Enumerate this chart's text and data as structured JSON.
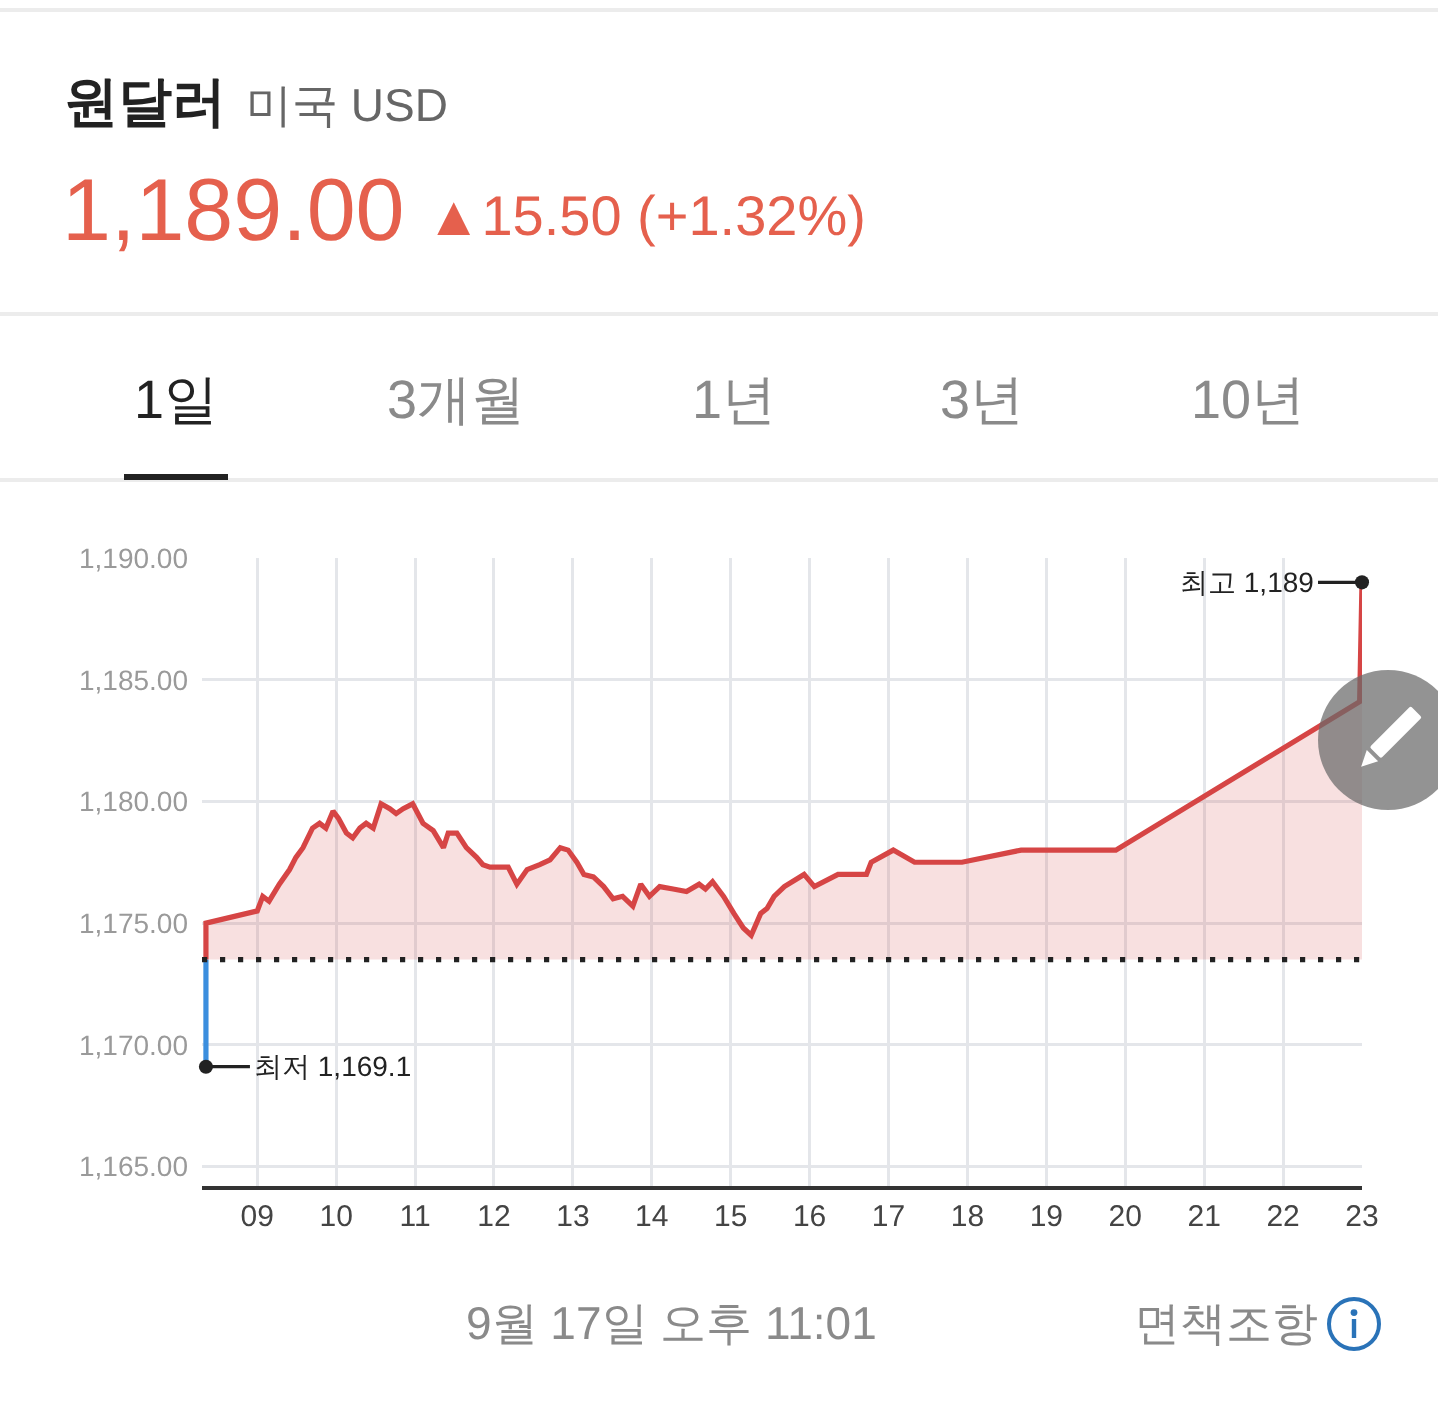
{
  "chart_data": {
    "type": "area",
    "title": "원달러",
    "subtitle": "미국 USD",
    "annotations": [
      "1,189.00",
      "▲15.50 (+1.32%)",
      "1일",
      "3개월",
      "1년",
      "3년",
      "10년",
      "9월 17일 오후 11:01",
      "면책조항",
      {
        "text": "최고 1,189",
        "x": 23.0,
        "y": 1189
      },
      {
        "text": "최저 1,169.1",
        "x": 8.35,
        "y": 1169.1
      }
    ],
    "series": [
      {
        "color": "#d64545",
        "x": [
          8.35,
          8.35,
          9.0,
          9.07,
          9.15,
          9.28,
          9.41,
          9.49,
          9.58,
          9.7,
          9.79,
          9.87,
          9.96,
          10.03,
          10.13,
          10.21,
          10.3,
          10.38,
          10.47,
          10.57,
          10.68,
          10.76,
          10.85,
          10.97,
          11.1,
          11.23,
          11.36,
          11.42,
          11.53,
          11.65,
          11.78,
          11.86,
          11.95,
          12.08,
          12.18,
          12.29,
          12.42,
          12.58,
          12.71,
          12.84,
          12.94,
          13.05,
          13.14,
          13.26,
          13.39,
          13.51,
          13.63,
          13.76,
          13.86,
          13.97,
          14.1,
          14.27,
          14.44,
          14.6,
          14.68,
          14.77,
          14.91,
          15.04,
          15.16,
          15.26,
          15.38,
          15.46,
          15.55,
          15.68,
          15.93,
          16.06,
          16.36,
          16.72,
          16.78,
          17.06,
          17.33,
          17.93,
          18.68,
          19.88,
          22.97,
          23.0
        ],
        "values": [
          1173.5,
          1175,
          1175.5,
          1176.1,
          1175.9,
          1176.6,
          1177.2,
          1177.7,
          1178.1,
          1178.9,
          1179.1,
          1178.9,
          1179.6,
          1179.3,
          1178.7,
          1178.5,
          1178.9,
          1179.1,
          1178.9,
          1179.9,
          1179.7,
          1179.5,
          1179.7,
          1179.9,
          1179.1,
          1178.8,
          1178.1,
          1178.7,
          1178.7,
          1178.1,
          1177.7,
          1177.4,
          1177.3,
          1177.3,
          1177.3,
          1176.6,
          1177.2,
          1177.4,
          1177.6,
          1178.1,
          1178,
          1177.5,
          1177,
          1176.9,
          1176.5,
          1176,
          1176.1,
          1175.7,
          1176.6,
          1176.1,
          1176.5,
          1176.4,
          1176.3,
          1176.6,
          1176.4,
          1176.7,
          1176.1,
          1175.4,
          1174.8,
          1174.5,
          1175.4,
          1175.6,
          1176.1,
          1176.5,
          1177,
          1176.5,
          1177,
          1177,
          1177.5,
          1178,
          1177.5,
          1177.5,
          1178,
          1178,
          1184.1,
          1189
        ]
      },
      {
        "type": "line",
        "color": "#3b8ede",
        "x": [
          8.35,
          8.35
        ],
        "values": [
          1169.1,
          1173.5
        ]
      }
    ],
    "xlim": [
      8.3,
      23
    ],
    "xticks": [
      {
        "value": 9,
        "label": "09"
      },
      10,
      11,
      12,
      13,
      14,
      15,
      16,
      17,
      18,
      19,
      20,
      21,
      22,
      23
    ],
    "ylim": [
      1164.2,
      1190
    ],
    "yticks": [
      {
        "value": 1165,
        "label": "1,165.00"
      },
      {
        "value": 1170,
        "label": "1,170.00"
      },
      {
        "value": 1175,
        "label": "1,175.00"
      },
      {
        "value": 1180,
        "label": "1,180.00"
      },
      {
        "value": 1185,
        "label": "1,185.00"
      },
      {
        "value": 1190,
        "label": "1,190.00"
      }
    ],
    "ref_lines": [
      {
        "axis": "y",
        "value": 1173.5,
        "color": "#222222",
        "line_style": "dotted"
      }
    ],
    "grid": true,
    "legend": false
  }
}
